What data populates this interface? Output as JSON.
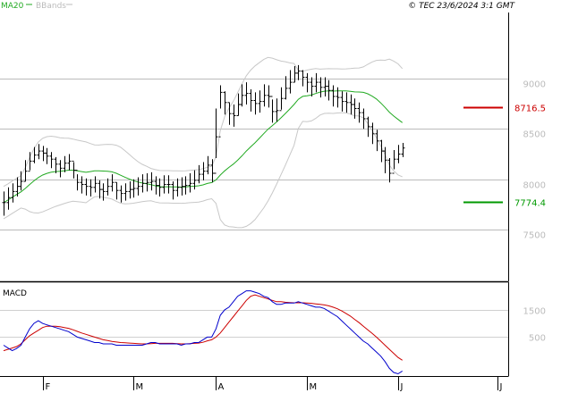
{
  "header": {
    "legend": [
      {
        "label": "MA20",
        "color": "#22aa22"
      },
      {
        "label": "BBands",
        "color": "#bbbbbb"
      }
    ],
    "copyright": "© TEC 23/6/2024 3:1 GMT"
  },
  "chart_data": [
    {
      "type": "ohlc",
      "panel": "price",
      "y_ticks": [
        {
          "value": 7500,
          "label": "7500"
        },
        {
          "value": 8000,
          "label": "8000"
        },
        {
          "value": 8500,
          "label": "8500"
        },
        {
          "value": 9000,
          "label": "9000"
        }
      ],
      "ylim": [
        7000,
        9650
      ],
      "x_ticks": [
        "F",
        "M",
        "A",
        "M",
        "J",
        "J"
      ],
      "x_tick_index": [
        9,
        30,
        49,
        70,
        91,
        114
      ],
      "x_total": 116,
      "closes": [
        7770,
        7820,
        7880,
        7930,
        7980,
        8080,
        8180,
        8240,
        8280,
        8260,
        8230,
        8200,
        8150,
        8110,
        8160,
        8180,
        8090,
        7970,
        7950,
        7930,
        7920,
        7960,
        7900,
        7880,
        7930,
        7970,
        7890,
        7860,
        7880,
        7900,
        7910,
        7930,
        7960,
        7970,
        7980,
        7940,
        7920,
        7950,
        7950,
        7890,
        7920,
        7930,
        7940,
        7960,
        7990,
        8050,
        8080,
        8140,
        8060,
        8420,
        8860,
        8760,
        8650,
        8630,
        8740,
        8830,
        8850,
        8780,
        8750,
        8770,
        8830,
        8820,
        8670,
        8680,
        8800,
        8900,
        8960,
        9050,
        9070,
        9010,
        8960,
        8920,
        8960,
        8910,
        8920,
        8880,
        8820,
        8810,
        8770,
        8760,
        8740,
        8700,
        8660,
        8600,
        8520,
        8450,
        8380,
        8280,
        8190,
        8060,
        8200,
        8250,
        8310
      ],
      "highs": [
        7880,
        7920,
        7960,
        8020,
        8080,
        8190,
        8270,
        8320,
        8350,
        8330,
        8310,
        8270,
        8220,
        8190,
        8230,
        8250,
        8170,
        8050,
        8030,
        8010,
        8000,
        8030,
        7990,
        7960,
        8010,
        8050,
        7970,
        7940,
        7960,
        7980,
        8000,
        8020,
        8050,
        8060,
        8070,
        8030,
        8010,
        8040,
        8040,
        7980,
        8010,
        8020,
        8030,
        8060,
        8090,
        8140,
        8170,
        8230,
        8200,
        8700,
        8930,
        8870,
        8760,
        8740,
        8850,
        8940,
        8960,
        8890,
        8860,
        8880,
        8940,
        8930,
        8790,
        8800,
        8910,
        9020,
        9080,
        9120,
        9130,
        9080,
        9050,
        9010,
        9050,
        9010,
        9010,
        8980,
        8930,
        8910,
        8870,
        8860,
        8840,
        8800,
        8760,
        8700,
        8620,
        8560,
        8490,
        8390,
        8320,
        8210,
        8290,
        8340,
        8360
      ],
      "lows": [
        7640,
        7700,
        7770,
        7830,
        7890,
        7980,
        8090,
        8160,
        8200,
        8180,
        8150,
        8110,
        8060,
        8020,
        8070,
        8090,
        8010,
        7890,
        7860,
        7840,
        7830,
        7870,
        7810,
        7790,
        7840,
        7880,
        7800,
        7770,
        7790,
        7810,
        7820,
        7840,
        7870,
        7880,
        7890,
        7850,
        7830,
        7860,
        7860,
        7800,
        7830,
        7840,
        7850,
        7870,
        7900,
        7960,
        7990,
        8050,
        7970,
        8210,
        8700,
        8640,
        8540,
        8520,
        8630,
        8720,
        8740,
        8670,
        8640,
        8660,
        8720,
        8710,
        8560,
        8570,
        8690,
        8790,
        8850,
        8960,
        8980,
        8920,
        8860,
        8820,
        8860,
        8810,
        8820,
        8780,
        8720,
        8710,
        8670,
        8660,
        8640,
        8600,
        8560,
        8500,
        8420,
        8350,
        8280,
        8170,
        8060,
        7970,
        8100,
        8160,
        8220
      ],
      "reference_levels": [
        {
          "value": 8716.5,
          "label": "8716.5",
          "color": "#cc0000"
        },
        {
          "value": 7774.4,
          "label": "7774.4",
          "color": "#009900"
        }
      ],
      "series": [
        {
          "name": "MA20",
          "color": "#22aa22"
        },
        {
          "name": "BBands",
          "color": "#bbbbbb"
        }
      ]
    },
    {
      "type": "line",
      "panel": "indicator",
      "title": "MACD",
      "y_ticks": [
        {
          "value": 500,
          "label": "500"
        },
        {
          "value": 1500,
          "label": "1500"
        }
      ],
      "ylim": [
        -900,
        2450
      ],
      "macd": [
        200,
        100,
        0,
        80,
        200,
        500,
        800,
        1000,
        1100,
        1000,
        950,
        900,
        850,
        800,
        750,
        700,
        600,
        500,
        450,
        400,
        350,
        300,
        300,
        250,
        250,
        250,
        200,
        200,
        200,
        200,
        200,
        200,
        200,
        250,
        300,
        300,
        250,
        250,
        250,
        250,
        250,
        200,
        250,
        250,
        300,
        300,
        400,
        500,
        500,
        800,
        1300,
        1500,
        1600,
        1800,
        2000,
        2100,
        2200,
        2200,
        2150,
        2100,
        2000,
        1950,
        1800,
        1700,
        1700,
        1750,
        1750,
        1750,
        1800,
        1750,
        1700,
        1650,
        1600,
        1600,
        1550,
        1450,
        1350,
        1250,
        1100,
        950,
        800,
        650,
        500,
        350,
        250,
        100,
        -50,
        -200,
        -400,
        -650,
        -800,
        -850,
        -750
      ],
      "signal": [
        0,
        50,
        100,
        150,
        250,
        400,
        550,
        650,
        750,
        850,
        900,
        900,
        900,
        880,
        850,
        820,
        770,
        710,
        650,
        600,
        550,
        500,
        450,
        400,
        370,
        340,
        320,
        300,
        290,
        280,
        270,
        260,
        250,
        250,
        260,
        270,
        270,
        270,
        270,
        270,
        260,
        250,
        250,
        260,
        270,
        280,
        310,
        360,
        400,
        500,
        650,
        850,
        1050,
        1250,
        1450,
        1650,
        1850,
        2000,
        2050,
        2000,
        1950,
        1900,
        1850,
        1800,
        1800,
        1780,
        1770,
        1760,
        1760,
        1760,
        1750,
        1740,
        1720,
        1700,
        1680,
        1650,
        1600,
        1540,
        1460,
        1370,
        1270,
        1150,
        1030,
        900,
        770,
        640,
        500,
        350,
        200,
        50,
        -100,
        -250,
        -350
      ]
    }
  ]
}
